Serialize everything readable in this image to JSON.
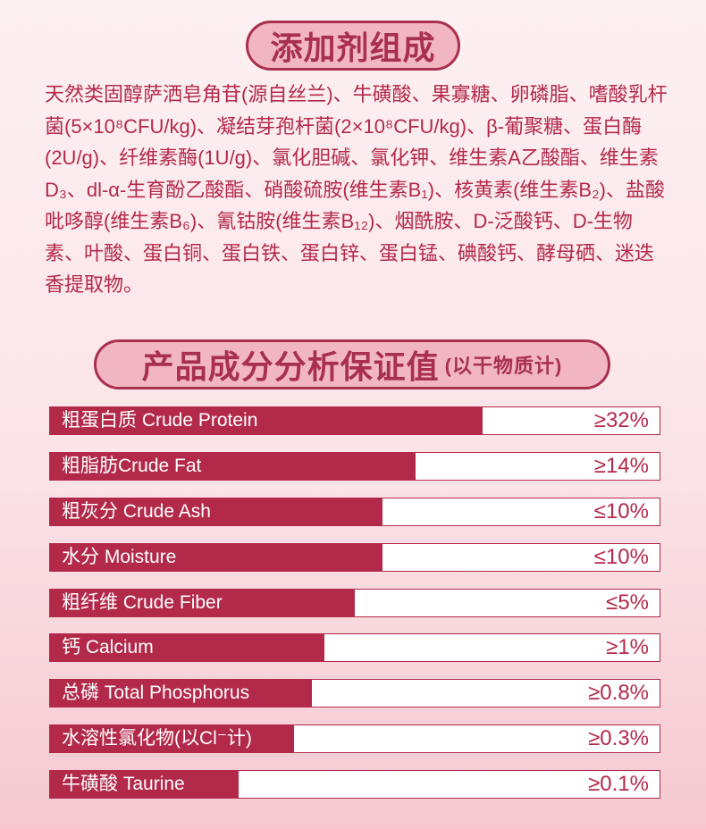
{
  "section1": {
    "title": "添加剂组成",
    "text": "天然类固醇萨洒皂角苷(源自丝兰)、牛磺酸、果寡糖、卵磷脂、嗜酸乳杆菌(5×10⁸CFU/kg)、凝结芽孢杆菌(2×10⁸CFU/kg)、β-葡聚糖、蛋白酶(2U/g)、纤维素酶(1U/g)、氯化胆碱、氯化钾、维生素A乙酸酯、维生素D₃、dl-α-生育酚乙酸酯、硝酸硫胺(维生素B₁)、核黄素(维生素B₂)、盐酸吡哆醇(维生素B₆)、氰钴胺(维生素B₁₂)、烟酰胺、D-泛酸钙、D-生物素、叶酸、蛋白铜、蛋白铁、蛋白锌、蛋白锰、碘酸钙、酵母硒、迷迭香提取物。"
  },
  "section2": {
    "title": "产品成分分析保证值",
    "subtitle": "(以干物质计)",
    "rows": [
      {
        "label": "粗蛋白质 Crude Protein",
        "value": "≥32%",
        "fill": 0.71
      },
      {
        "label": "粗脂肪Crude Fat",
        "value": "≥14%",
        "fill": 0.6
      },
      {
        "label": "粗灰分 Crude Ash",
        "value": "≤10%",
        "fill": 0.545
      },
      {
        "label": "水分 Moisture",
        "value": "≤10%",
        "fill": 0.545
      },
      {
        "label": "粗纤维 Crude Fiber",
        "value": "≤5%",
        "fill": 0.5
      },
      {
        "label": "钙 Calcium",
        "value": "≥1%",
        "fill": 0.45
      },
      {
        "label": "总磷 Total Phosphorus",
        "value": "≥0.8%",
        "fill": 0.43
      },
      {
        "label": "水溶性氯化物(以Cl⁻计)",
        "value": "≥0.3%",
        "fill": 0.4
      },
      {
        "label": "牛磺酸 Taurine",
        "value": "≥0.1%",
        "fill": 0.31
      }
    ]
  }
}
